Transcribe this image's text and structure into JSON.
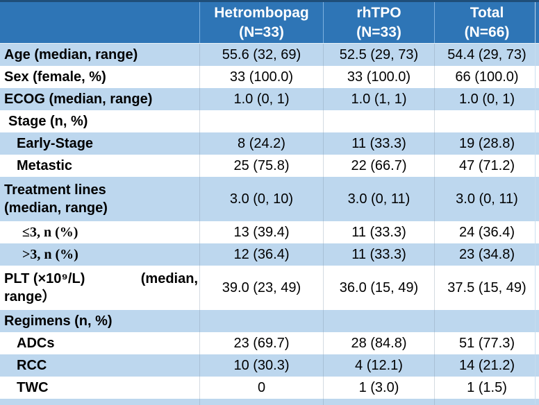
{
  "colors": {
    "header_bg": "#2E75B6",
    "band": "#BDD7EE",
    "top_border": "#1F4E79"
  },
  "table": {
    "header": [
      {
        "line1": "Hetrombopag",
        "line2": "(N=33)"
      },
      {
        "line1": "rhTPO",
        "line2": "(N=33)"
      },
      {
        "line1": "Total",
        "line2": "(N=66)"
      }
    ],
    "rows": [
      {
        "label": "Age (median, range)",
        "values": [
          "55.6 (32, 69)",
          "52.5 (29, 73)",
          "54.4 (29, 73)"
        ],
        "shade": true,
        "indent": 0
      },
      {
        "label": "Sex (female, %)",
        "values": [
          "33 (100.0)",
          "33 (100.0)",
          "66 (100.0)"
        ],
        "shade": false,
        "indent": 0
      },
      {
        "label": "ECOG (median, range)",
        "values": [
          "1.0 (0, 1)",
          "1.0 (1, 1)",
          "1.0 (0, 1)"
        ],
        "shade": true,
        "indent": 0
      },
      {
        "label": "Stage (n, %)",
        "values": [
          "",
          "",
          ""
        ],
        "shade": false,
        "indent": 1
      },
      {
        "label": "Early-Stage",
        "values": [
          "8 (24.2)",
          "11 (33.3)",
          "19 (28.8)"
        ],
        "shade": true,
        "indent": 2
      },
      {
        "label": "Metastic",
        "values": [
          "25 (75.8)",
          "22 (66.7)",
          "47 (71.2)"
        ],
        "shade": false,
        "indent": 2
      },
      {
        "label": "Treatment lines\n(median, range)",
        "values": [
          "3.0 (0, 10)",
          "3.0 (0, 11)",
          "3.0 (0, 11)"
        ],
        "shade": true,
        "indent": 0,
        "tall": true
      },
      {
        "label": "≤3, n (%)",
        "values": [
          "13 (39.4)",
          "11 (33.3)",
          "24 (36.4)"
        ],
        "shade": false,
        "indent": 3,
        "serif": true
      },
      {
        "label": ">3, n (%)",
        "values": [
          "12 (36.4)",
          "11 (33.3)",
          "23 (34.8)"
        ],
        "shade": true,
        "indent": 3,
        "serif": true
      },
      {
        "label": "PLT (×10⁹/L)",
        "label_right": "(median,",
        "label_line2": "range）",
        "values": [
          "39.0 (23, 49)",
          "36.0 (15, 49)",
          "37.5 (15, 49)"
        ],
        "shade": false,
        "indent": 0,
        "tall": true
      },
      {
        "label": "Regimens (n, %)",
        "values": [
          "",
          "",
          ""
        ],
        "shade": true,
        "indent": 0
      },
      {
        "label": "ADCs",
        "values": [
          "23 (69.7)",
          "28 (84.8)",
          "51 (77.3)"
        ],
        "shade": false,
        "indent": 2
      },
      {
        "label": "RCC",
        "values": [
          "10 (30.3)",
          "4 (12.1)",
          "14 (21.2)"
        ],
        "shade": true,
        "indent": 2
      },
      {
        "label": "TWC",
        "values": [
          "0",
          "1 (3.0)",
          "1 (1.5)"
        ],
        "shade": false,
        "indent": 2
      },
      {
        "label": "",
        "values": [
          "",
          "",
          ""
        ],
        "shade": true,
        "partial": true
      }
    ]
  }
}
